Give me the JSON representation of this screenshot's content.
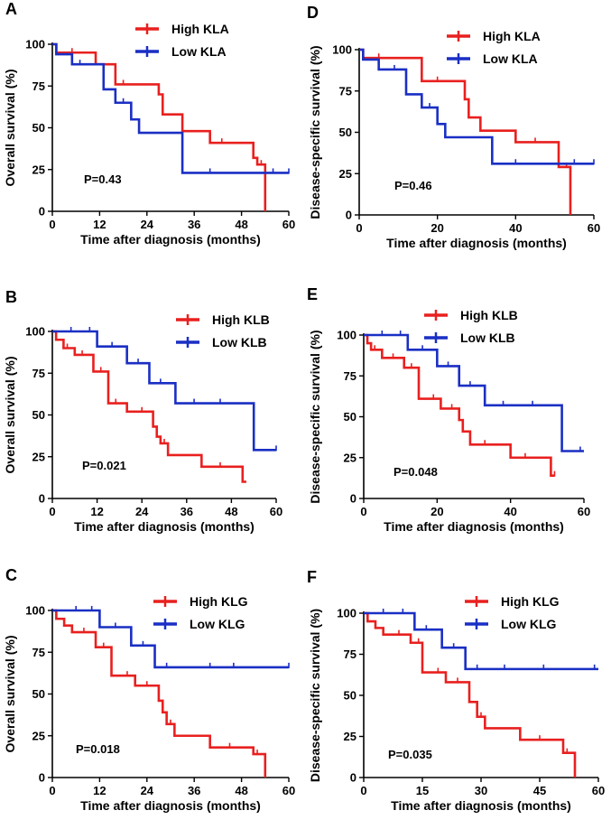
{
  "colors": {
    "high": "#e8201f",
    "low": "#1a2fc4",
    "axis": "#000000"
  },
  "chart_data": [
    {
      "type": "line",
      "step": true,
      "letter": "A",
      "xlabel": "Time after diagnosis (months)",
      "ylabel": "Overall survival (%)",
      "xlim": [
        0,
        60
      ],
      "ylim": [
        0,
        100
      ],
      "xticks": [
        0,
        12,
        24,
        36,
        48,
        60
      ],
      "yticks": [
        0,
        25,
        50,
        75,
        100
      ],
      "pvalue": "P=0.43",
      "series": [
        {
          "name": "High KLA",
          "color": "high",
          "steps": [
            [
              0,
              100
            ],
            [
              1,
              95
            ],
            [
              11,
              88
            ],
            [
              16,
              76
            ],
            [
              27,
              70
            ],
            [
              28,
              58
            ],
            [
              33,
              48
            ],
            [
              40,
              41
            ],
            [
              51,
              32
            ],
            [
              52,
              28
            ],
            [
              54,
              0
            ]
          ],
          "censors": [
            [
              5,
              95
            ],
            [
              18,
              76
            ],
            [
              43,
              41
            ],
            [
              53,
              28
            ]
          ]
        },
        {
          "name": "Low KLA",
          "color": "low",
          "steps": [
            [
              0,
              100
            ],
            [
              1,
              94
            ],
            [
              5,
              88
            ],
            [
              13,
              73
            ],
            [
              16,
              65
            ],
            [
              20,
              55
            ],
            [
              22,
              47
            ],
            [
              33,
              23
            ],
            [
              60,
              23
            ]
          ],
          "censors": [
            [
              7,
              88
            ],
            [
              18,
              65
            ],
            [
              40,
              23
            ],
            [
              56,
              23
            ],
            [
              60,
              23
            ]
          ]
        }
      ]
    },
    {
      "type": "line",
      "step": true,
      "letter": "D",
      "xlabel": "Time after diagnosis (months)",
      "ylabel": "Disease-specific survival (%)",
      "xlim": [
        0,
        60
      ],
      "ylim": [
        0,
        100
      ],
      "xticks": [
        0,
        20,
        40,
        60
      ],
      "yticks": [
        0,
        25,
        50,
        75,
        100
      ],
      "pvalue": "P=0.46",
      "series": [
        {
          "name": "High KLA",
          "color": "high",
          "steps": [
            [
              0,
              100
            ],
            [
              1,
              95
            ],
            [
              16,
              81
            ],
            [
              27,
              70
            ],
            [
              28,
              59
            ],
            [
              31,
              51
            ],
            [
              40,
              44
            ],
            [
              51,
              29
            ],
            [
              54,
              0
            ]
          ],
          "censors": [
            [
              5,
              95
            ],
            [
              20,
              81
            ],
            [
              45,
              44
            ],
            [
              53,
              29
            ]
          ]
        },
        {
          "name": "Low KLA",
          "color": "low",
          "steps": [
            [
              0,
              100
            ],
            [
              1,
              94
            ],
            [
              5,
              88
            ],
            [
              12,
              73
            ],
            [
              16,
              65
            ],
            [
              20,
              55
            ],
            [
              22,
              47
            ],
            [
              34,
              31
            ],
            [
              60,
              31
            ]
          ],
          "censors": [
            [
              9,
              88
            ],
            [
              18,
              65
            ],
            [
              40,
              31
            ],
            [
              55,
              31
            ],
            [
              60,
              31
            ]
          ]
        }
      ]
    },
    {
      "type": "line",
      "step": true,
      "letter": "B",
      "xlabel": "Time after diagnosis (months)",
      "ylabel": "Overall survival (%)",
      "xlim": [
        0,
        60
      ],
      "ylim": [
        0,
        100
      ],
      "xticks": [
        0,
        12,
        24,
        36,
        48,
        60
      ],
      "yticks": [
        0,
        25,
        50,
        75,
        100
      ],
      "pvalue": "P=0.021",
      "series": [
        {
          "name": "High KLB",
          "color": "high",
          "steps": [
            [
              0,
              100
            ],
            [
              1,
              95
            ],
            [
              3,
              90
            ],
            [
              6,
              86
            ],
            [
              11,
              76
            ],
            [
              15,
              57
            ],
            [
              20,
              52
            ],
            [
              27,
              43
            ],
            [
              28,
              37
            ],
            [
              29,
              33
            ],
            [
              31,
              26
            ],
            [
              40,
              19
            ],
            [
              51,
              10
            ],
            [
              52,
              10
            ]
          ],
          "censors": [
            [
              4,
              90
            ],
            [
              8,
              86
            ],
            [
              13,
              76
            ],
            [
              17,
              57
            ],
            [
              24,
              52
            ],
            [
              30,
              33
            ],
            [
              45,
              19
            ],
            [
              51,
              10
            ]
          ]
        },
        {
          "name": "Low KLB",
          "color": "low",
          "steps": [
            [
              0,
              100
            ],
            [
              12,
              91
            ],
            [
              20,
              81
            ],
            [
              26,
              69
            ],
            [
              33,
              57
            ],
            [
              54,
              29
            ],
            [
              60,
              29
            ]
          ],
          "censors": [
            [
              5,
              100
            ],
            [
              10,
              100
            ],
            [
              16,
              91
            ],
            [
              23,
              81
            ],
            [
              29,
              69
            ],
            [
              38,
              57
            ],
            [
              45,
              57
            ],
            [
              60,
              29
            ]
          ]
        }
      ]
    },
    {
      "type": "line",
      "step": true,
      "letter": "E",
      "xlabel": "Time after diagnosis (months)",
      "ylabel": "Disease-specific survival (%)",
      "xlim": [
        0,
        60
      ],
      "ylim": [
        0,
        100
      ],
      "xticks": [
        0,
        20,
        40,
        60
      ],
      "yticks": [
        0,
        25,
        50,
        75,
        100
      ],
      "pvalue": "P=0.048",
      "series": [
        {
          "name": "High KLB",
          "color": "high",
          "steps": [
            [
              0,
              100
            ],
            [
              1,
              95
            ],
            [
              2,
              91
            ],
            [
              5,
              86
            ],
            [
              11,
              80
            ],
            [
              15,
              61
            ],
            [
              21,
              55
            ],
            [
              26,
              48
            ],
            [
              27,
              41
            ],
            [
              29,
              33
            ],
            [
              40,
              25
            ],
            [
              51,
              14
            ],
            [
              52,
              14
            ]
          ],
          "censors": [
            [
              3,
              91
            ],
            [
              8,
              86
            ],
            [
              13,
              80
            ],
            [
              19,
              61
            ],
            [
              24,
              55
            ],
            [
              33,
              33
            ],
            [
              44,
              25
            ],
            [
              52,
              14
            ]
          ]
        },
        {
          "name": "Low KLB",
          "color": "low",
          "steps": [
            [
              0,
              100
            ],
            [
              12,
              91
            ],
            [
              20,
              81
            ],
            [
              26,
              69
            ],
            [
              33,
              57
            ],
            [
              54,
              29
            ],
            [
              60,
              29
            ]
          ],
          "censors": [
            [
              5,
              100
            ],
            [
              10,
              100
            ],
            [
              16,
              91
            ],
            [
              23,
              81
            ],
            [
              29,
              69
            ],
            [
              38,
              57
            ],
            [
              46,
              57
            ],
            [
              59,
              29
            ]
          ]
        }
      ]
    },
    {
      "type": "line",
      "step": true,
      "letter": "C",
      "xlabel": "Time after diagnosis (months)",
      "ylabel": "Overall survival (%)",
      "xlim": [
        0,
        60
      ],
      "ylim": [
        0,
        100
      ],
      "xticks": [
        0,
        12,
        24,
        36,
        48,
        60
      ],
      "yticks": [
        0,
        25,
        50,
        75,
        100
      ],
      "pvalue": "P=0.018",
      "series": [
        {
          "name": "High KLG",
          "color": "high",
          "steps": [
            [
              0,
              100
            ],
            [
              1,
              95
            ],
            [
              3,
              91
            ],
            [
              5,
              87
            ],
            [
              11,
              78
            ],
            [
              15,
              61
            ],
            [
              21,
              55
            ],
            [
              27,
              46
            ],
            [
              28,
              39
            ],
            [
              29,
              32
            ],
            [
              31,
              25
            ],
            [
              40,
              18
            ],
            [
              51,
              14
            ],
            [
              54,
              0
            ]
          ],
          "censors": [
            [
              3,
              91
            ],
            [
              8,
              87
            ],
            [
              13,
              78
            ],
            [
              19,
              61
            ],
            [
              24,
              55
            ],
            [
              30,
              32
            ],
            [
              45,
              18
            ],
            [
              52,
              14
            ]
          ]
        },
        {
          "name": "Low KLG",
          "color": "low",
          "steps": [
            [
              0,
              100
            ],
            [
              12,
              90
            ],
            [
              20,
              79
            ],
            [
              26,
              66
            ],
            [
              60,
              66
            ]
          ],
          "censors": [
            [
              6,
              100
            ],
            [
              10,
              100
            ],
            [
              16,
              90
            ],
            [
              23,
              79
            ],
            [
              29,
              66
            ],
            [
              40,
              66
            ],
            [
              46,
              66
            ],
            [
              60,
              66
            ]
          ]
        }
      ]
    },
    {
      "type": "line",
      "step": true,
      "letter": "F",
      "xlabel": "Time after diagnosis (months)",
      "ylabel": "Disease-specific survival (%)",
      "xlim": [
        0,
        60
      ],
      "ylim": [
        0,
        100
      ],
      "xticks": [
        0,
        15,
        30,
        45,
        60
      ],
      "yticks": [
        0,
        25,
        50,
        75,
        100
      ],
      "pvalue": "P=0.035",
      "series": [
        {
          "name": "High KLG",
          "color": "high",
          "steps": [
            [
              0,
              100
            ],
            [
              1,
              95
            ],
            [
              3,
              91
            ],
            [
              5,
              87
            ],
            [
              12,
              82
            ],
            [
              15,
              64
            ],
            [
              21,
              58
            ],
            [
              27,
              46
            ],
            [
              29,
              37
            ],
            [
              31,
              30
            ],
            [
              40,
              23
            ],
            [
              51,
              15
            ],
            [
              54,
              0
            ]
          ],
          "censors": [
            [
              3,
              91
            ],
            [
              9,
              87
            ],
            [
              14,
              82
            ],
            [
              19,
              64
            ],
            [
              24,
              58
            ],
            [
              30,
              37
            ],
            [
              45,
              23
            ],
            [
              52,
              15
            ]
          ]
        },
        {
          "name": "Low KLG",
          "color": "low",
          "steps": [
            [
              0,
              100
            ],
            [
              13,
              90
            ],
            [
              20,
              79
            ],
            [
              26,
              66
            ],
            [
              60,
              66
            ]
          ],
          "censors": [
            [
              5,
              100
            ],
            [
              10,
              100
            ],
            [
              16,
              90
            ],
            [
              23,
              79
            ],
            [
              29,
              66
            ],
            [
              36,
              66
            ],
            [
              46,
              66
            ],
            [
              59,
              66
            ]
          ]
        }
      ]
    }
  ]
}
